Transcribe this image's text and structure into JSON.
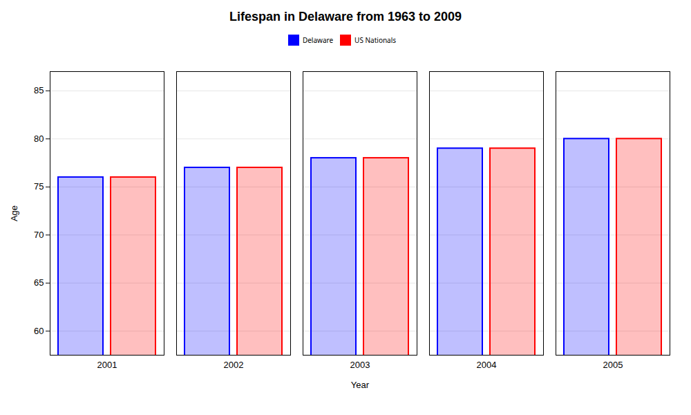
{
  "chart_data": {
    "type": "bar",
    "title": "Lifespan in Delaware from 1963 to 2009",
    "xlabel": "Year",
    "ylabel": "Age",
    "categories": [
      "2001",
      "2002",
      "2003",
      "2004",
      "2005"
    ],
    "series": [
      {
        "name": "Delaware",
        "color": "#0000ff",
        "values": [
          76,
          77,
          78,
          79,
          80
        ]
      },
      {
        "name": "US Nationals",
        "color": "#ff0000",
        "values": [
          76,
          77,
          78,
          79,
          80
        ]
      }
    ],
    "ylim": [
      57.5,
      87
    ],
    "yticks": [
      60,
      65,
      70,
      75,
      80,
      85
    ],
    "grid": true,
    "legend": "top"
  }
}
